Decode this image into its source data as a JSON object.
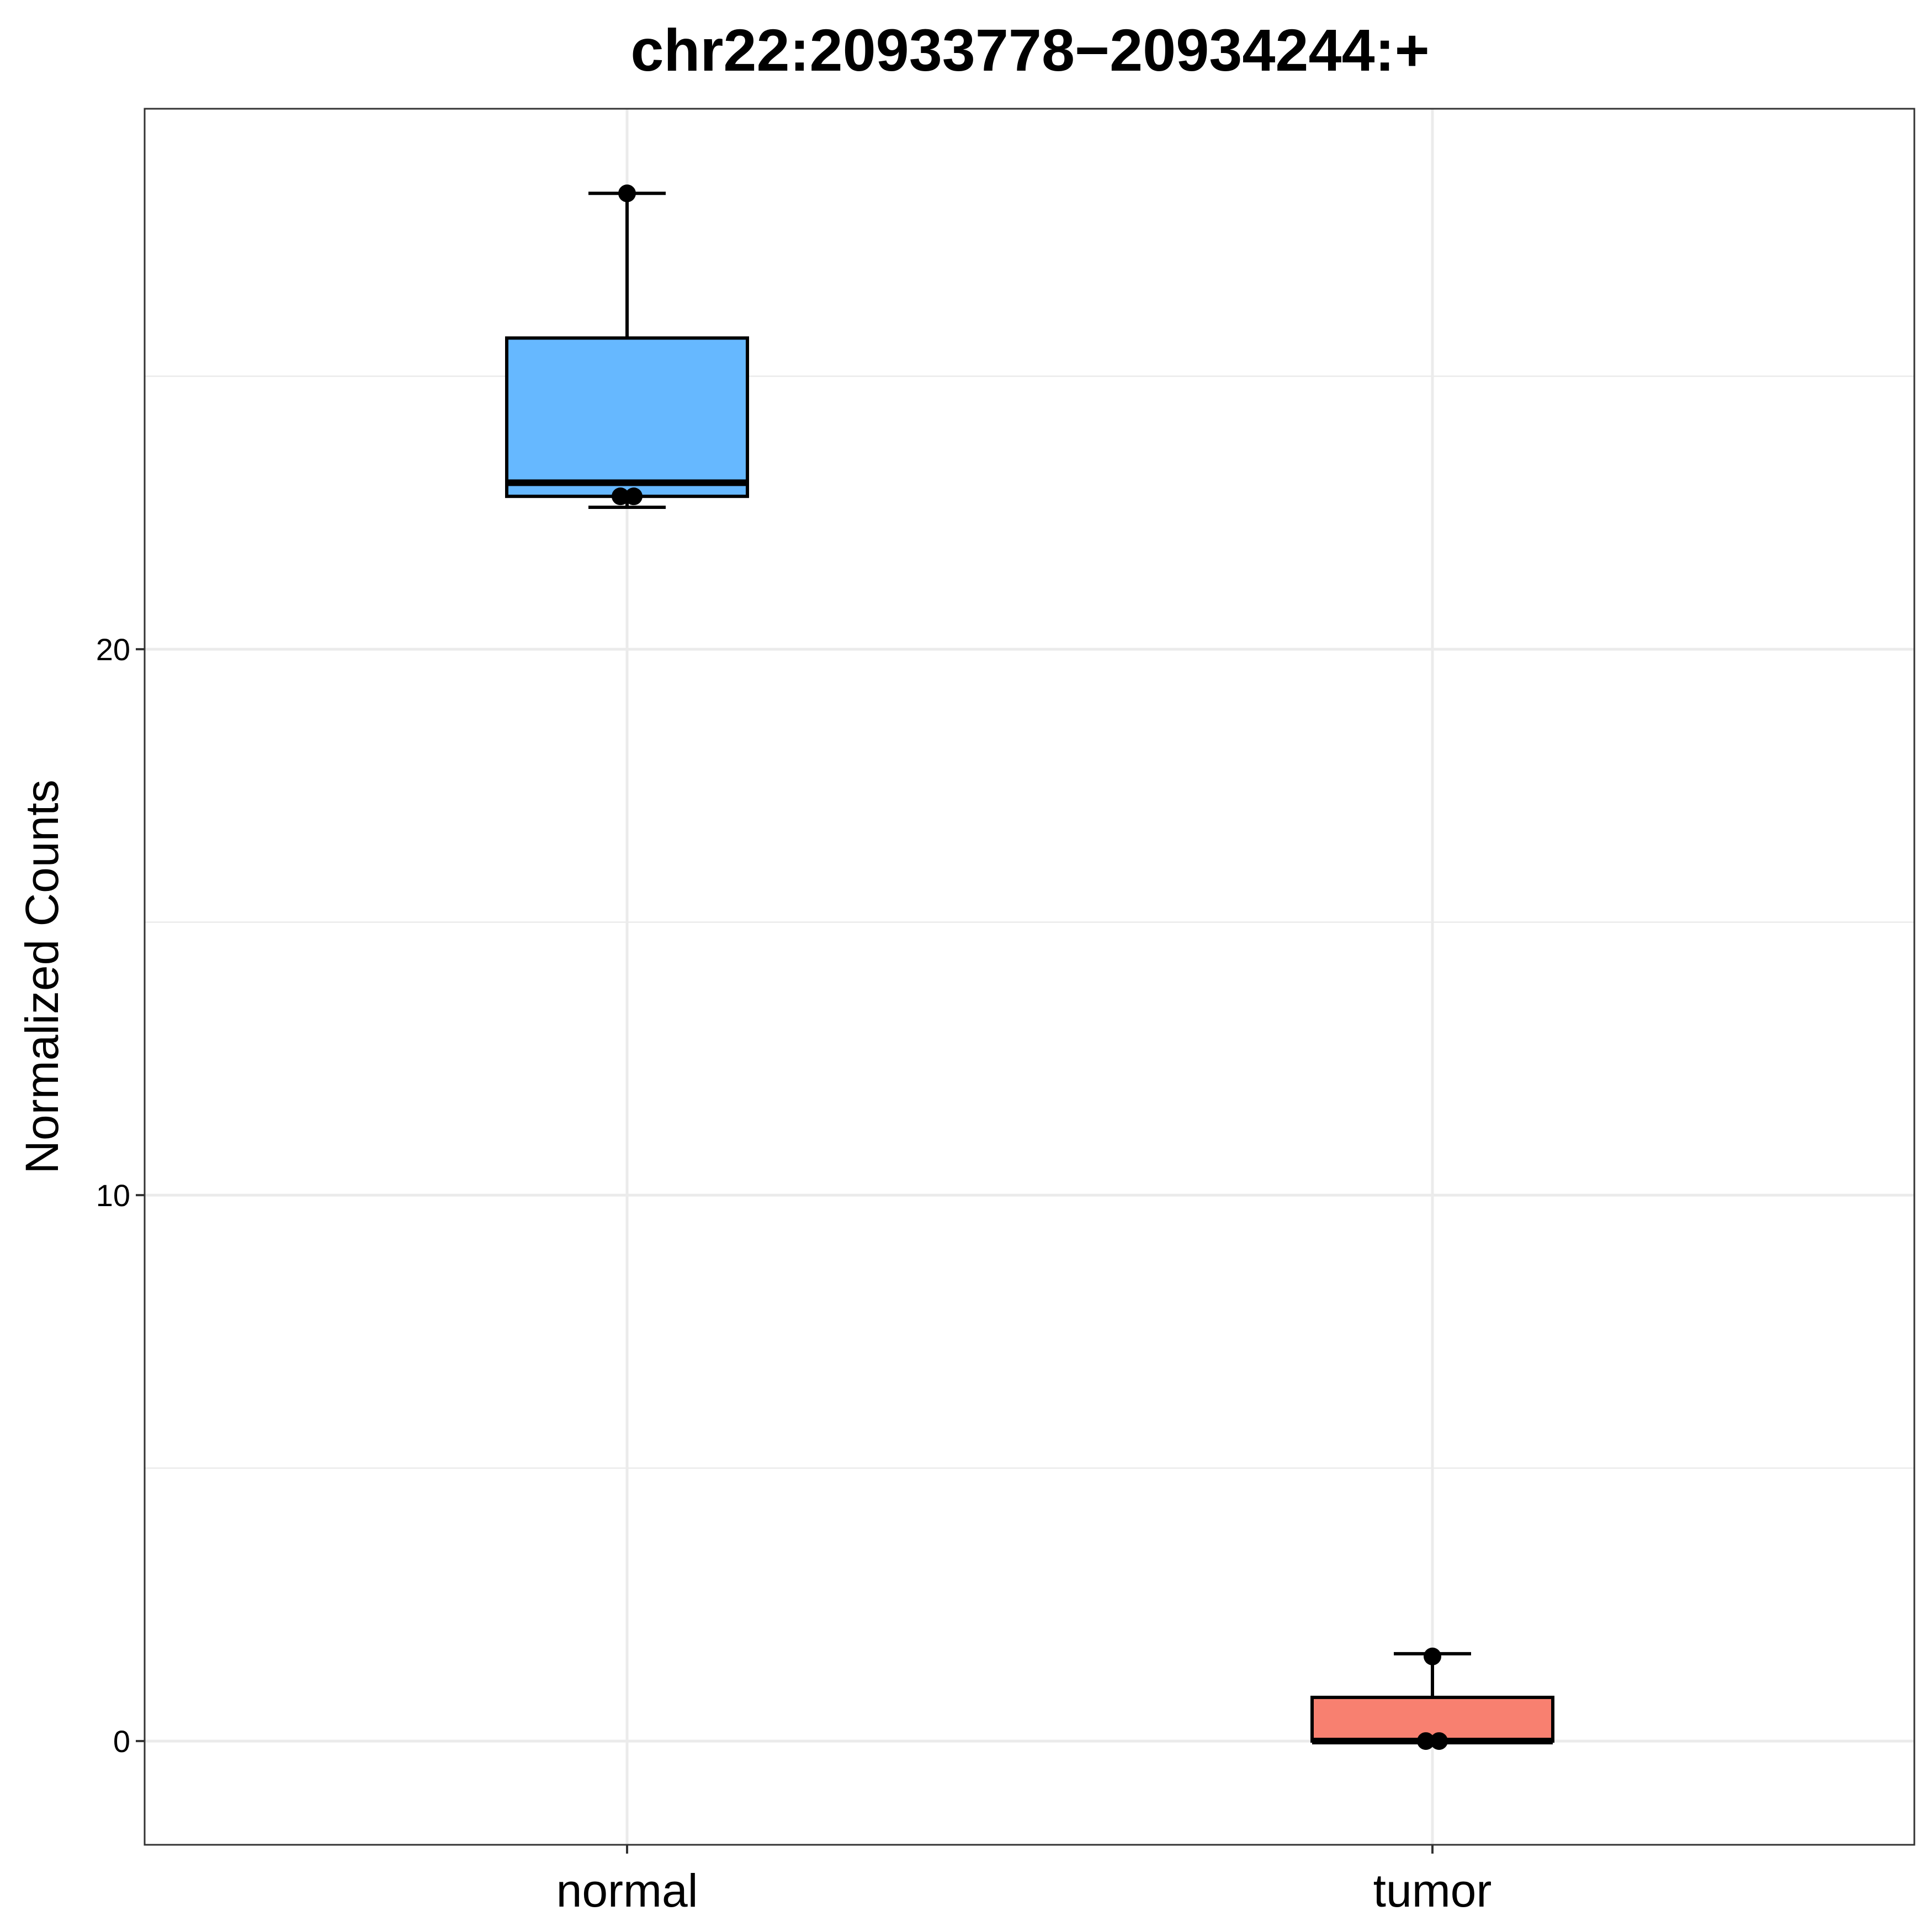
{
  "chart_data": {
    "type": "box",
    "title": "chr22:20933778−20934244:+",
    "xlabel": "",
    "ylabel": "Normalized Counts",
    "ylim": [
      -1.9,
      29.9
    ],
    "yticks": [
      0,
      10,
      20
    ],
    "grid": true,
    "legend": "none",
    "categories": [
      "normal",
      "tumor"
    ],
    "boxes": [
      {
        "category": "normal",
        "min": 22.6,
        "q1": 22.8,
        "median": 23.05,
        "q3": 25.7,
        "max": 28.35,
        "fill": "#66B8FF",
        "points": [
          {
            "x": "normal",
            "y": 28.35
          },
          {
            "x": "normal",
            "y": 22.8
          },
          {
            "x": "normal",
            "y": 22.8
          }
        ]
      },
      {
        "category": "tumor",
        "min": 0.0,
        "q1": 0.0,
        "median": 0.0,
        "q3": 0.8,
        "max": 1.6,
        "fill": "#F88070",
        "points": [
          {
            "x": "tumor",
            "y": 1.55
          },
          {
            "x": "tumor",
            "y": 0.0
          },
          {
            "x": "tumor",
            "y": 0.0
          }
        ]
      }
    ]
  }
}
